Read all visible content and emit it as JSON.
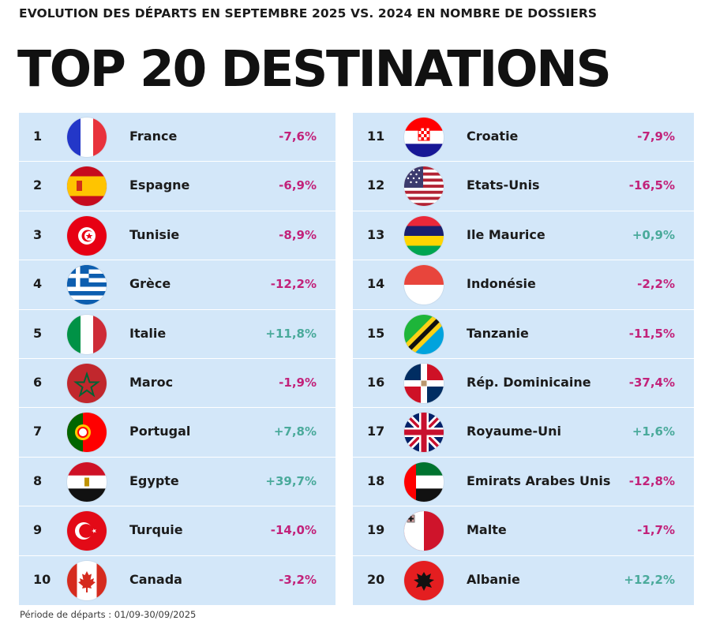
{
  "header": {
    "subtitle": "EVOLUTION DES DÉPARTS EN SEPTEMBRE 2025 VS. 2024 EN NOMBRE DE DOSSIERS",
    "title": "TOP 20 DESTINATIONS"
  },
  "colors": {
    "panel": "#d3e7f9",
    "negative": "#c2227a",
    "positive": "#4aaa9b"
  },
  "destinations": [
    {
      "rank": "1",
      "country": "France",
      "change": "-7,6%",
      "trend": "negative",
      "flag_icon": "flag-france-icon"
    },
    {
      "rank": "2",
      "country": "Espagne",
      "change": "-6,9%",
      "trend": "negative",
      "flag_icon": "flag-spain-icon"
    },
    {
      "rank": "3",
      "country": "Tunisie",
      "change": "-8,9%",
      "trend": "negative",
      "flag_icon": "flag-tunisia-icon"
    },
    {
      "rank": "4",
      "country": "Grèce",
      "change": "-12,2%",
      "trend": "negative",
      "flag_icon": "flag-greece-icon"
    },
    {
      "rank": "5",
      "country": "Italie",
      "change": "+11,8%",
      "trend": "positive",
      "flag_icon": "flag-italy-icon"
    },
    {
      "rank": "6",
      "country": "Maroc",
      "change": "-1,9%",
      "trend": "negative",
      "flag_icon": "flag-morocco-icon"
    },
    {
      "rank": "7",
      "country": "Portugal",
      "change": "+7,8%",
      "trend": "positive",
      "flag_icon": "flag-portugal-icon"
    },
    {
      "rank": "8",
      "country": "Egypte",
      "change": "+39,7%",
      "trend": "positive",
      "flag_icon": "flag-egypt-icon"
    },
    {
      "rank": "9",
      "country": "Turquie",
      "change": "-14,0%",
      "trend": "negative",
      "flag_icon": "flag-turkey-icon"
    },
    {
      "rank": "10",
      "country": "Canada",
      "change": "-3,2%",
      "trend": "negative",
      "flag_icon": "flag-canada-icon"
    },
    {
      "rank": "11",
      "country": "Croatie",
      "change": "-7,9%",
      "trend": "negative",
      "flag_icon": "flag-croatia-icon"
    },
    {
      "rank": "12",
      "country": "Etats-Unis",
      "change": "-16,5%",
      "trend": "negative",
      "flag_icon": "flag-usa-icon"
    },
    {
      "rank": "13",
      "country": "Ile Maurice",
      "change": "+0,9%",
      "trend": "positive",
      "flag_icon": "flag-mauritius-icon"
    },
    {
      "rank": "14",
      "country": "Indonésie",
      "change": "-2,2%",
      "trend": "negative",
      "flag_icon": "flag-indonesia-icon"
    },
    {
      "rank": "15",
      "country": "Tanzanie",
      "change": "-11,5%",
      "trend": "negative",
      "flag_icon": "flag-tanzania-icon"
    },
    {
      "rank": "16",
      "country": "Rép. Dominicaine",
      "change": "-37,4%",
      "trend": "negative",
      "flag_icon": "flag-dominican-republic-icon"
    },
    {
      "rank": "17",
      "country": "Royaume-Uni",
      "change": "+1,6%",
      "trend": "positive",
      "flag_icon": "flag-uk-icon"
    },
    {
      "rank": "18",
      "country": "Emirats Arabes Unis",
      "change": "-12,8%",
      "trend": "negative",
      "flag_icon": "flag-uae-icon"
    },
    {
      "rank": "19",
      "country": "Malte",
      "change": "-1,7%",
      "trend": "negative",
      "flag_icon": "flag-malta-icon"
    },
    {
      "rank": "20",
      "country": "Albanie",
      "change": "+12,2%",
      "trend": "positive",
      "flag_icon": "flag-albania-icon"
    }
  ],
  "footer": {
    "period": "Période de départs : 01/09-30/09/2025"
  }
}
